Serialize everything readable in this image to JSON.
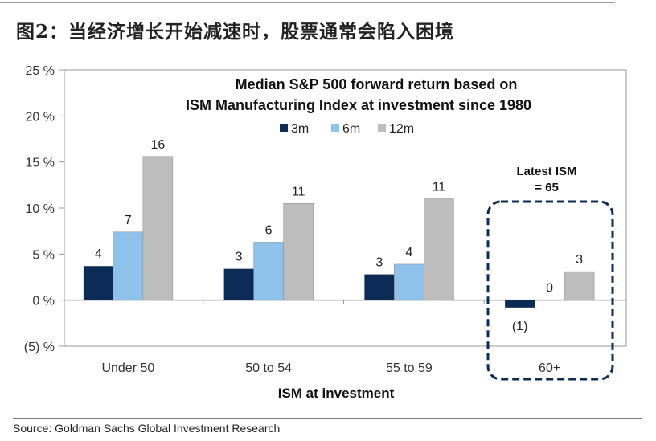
{
  "figure_title": "图2：当经济增长开始减速时，股票通常会陷入困境",
  "source": "Source: Goldman Sachs Global Investment Research",
  "chart_data": {
    "type": "bar",
    "title_line1": "Median S&P 500 forward return based on",
    "title_line2": "ISM Manufacturing Index at investment since 1980",
    "xlabel": "ISM at investment",
    "ylabel": "",
    "ylim": [
      -5,
      25
    ],
    "yticks": [
      25,
      20,
      15,
      10,
      5,
      0,
      -5
    ],
    "ytick_labels": [
      "25 %",
      "20 %",
      "15 %",
      "10 %",
      "5 %",
      "0 %",
      "(5) %"
    ],
    "grid": false,
    "legend_position": "top-center",
    "categories": [
      "Under 50",
      "50 to 54",
      "55 to 59",
      "60+"
    ],
    "series": [
      {
        "name": "3m",
        "color": "#0c2c57",
        "values": [
          3.7,
          3.4,
          2.8,
          -0.8
        ],
        "labels": [
          "4",
          "3",
          "3",
          "(1)"
        ]
      },
      {
        "name": "6m",
        "color": "#8ec2ea",
        "values": [
          7.4,
          6.3,
          3.9,
          0
        ],
        "labels": [
          "7",
          "6",
          "4",
          "0"
        ]
      },
      {
        "name": "12m",
        "color": "#bdbdbd",
        "values": [
          15.6,
          10.5,
          11.0,
          3.1
        ],
        "labels": [
          "16",
          "11",
          "11",
          "3"
        ]
      }
    ],
    "annotation": {
      "line1": "Latest ISM",
      "line2": "= 65",
      "highlight_category": "60+"
    }
  }
}
